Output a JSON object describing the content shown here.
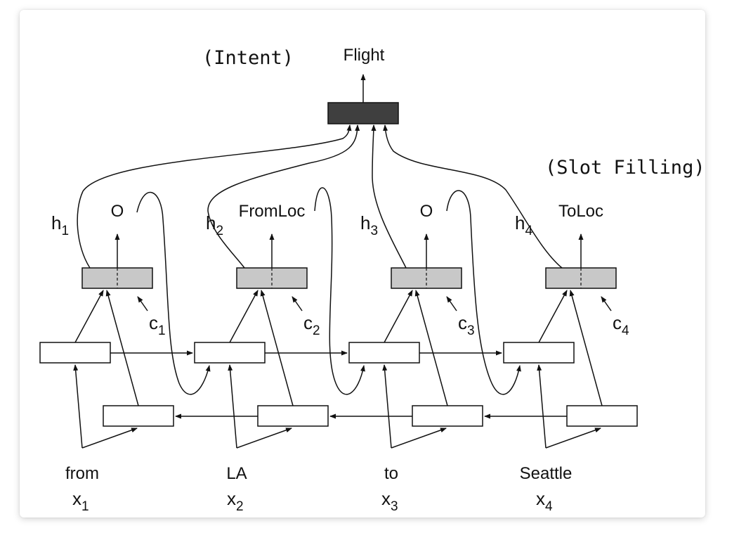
{
  "intent": {
    "caption": "(Intent)",
    "output": "Flight"
  },
  "slot": {
    "caption": "(Slot Filling)"
  },
  "steps": [
    {
      "h": "h",
      "h_idx": "1",
      "tag": "O",
      "c": "c",
      "c_idx": "1",
      "word": "from",
      "x": "x",
      "x_idx": "1"
    },
    {
      "h": "h",
      "h_idx": "2",
      "tag": "FromLoc",
      "c": "c",
      "c_idx": "2",
      "word": "LA",
      "x": "x",
      "x_idx": "2"
    },
    {
      "h": "h",
      "h_idx": "3",
      "tag": "O",
      "c": "c",
      "c_idx": "3",
      "word": "to",
      "x": "x",
      "x_idx": "3"
    },
    {
      "h": "h",
      "h_idx": "4",
      "tag": "ToLoc",
      "c": "c",
      "c_idx": "4",
      "word": "Seattle",
      "x": "x",
      "x_idx": "4"
    }
  ],
  "colors": {
    "intent_box": "#3f3f3f",
    "output_box": "#c8c8c8",
    "line": "#111111"
  }
}
